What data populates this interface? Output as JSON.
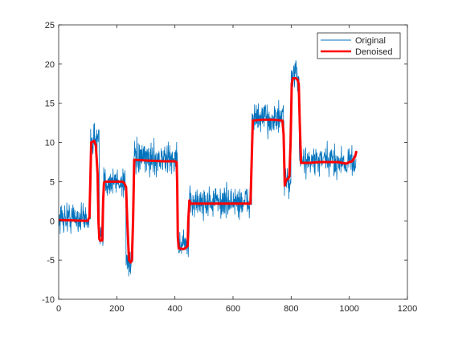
{
  "chart_data": {
    "type": "line",
    "title": "",
    "xlabel": "",
    "ylabel": "",
    "xlim": [
      0,
      1200
    ],
    "ylim": [
      -10,
      25
    ],
    "xticks": [
      0,
      200,
      400,
      600,
      800,
      1000,
      1200
    ],
    "yticks": [
      -10,
      -5,
      0,
      5,
      10,
      15,
      20,
      25
    ],
    "xtick_labels": [
      "0",
      "200",
      "400",
      "600",
      "800",
      "1000",
      "1200"
    ],
    "ytick_labels": [
      "-10",
      "-5",
      "0",
      "5",
      "10",
      "15",
      "20",
      "25"
    ],
    "grid": false,
    "legend": {
      "position": "top-right"
    },
    "series": [
      {
        "name": "Original",
        "color": "#0072BD",
        "style": "thin-noisy",
        "segments": [
          {
            "x": [
              1,
              110
            ],
            "level": 0.4,
            "noise": 2.0
          },
          {
            "x": [
              110,
              140
            ],
            "level": 10.5,
            "noise": 2.0
          },
          {
            "x": [
              140,
              155
            ],
            "level": -2.3,
            "noise": 2.0
          },
          {
            "x": [
              155,
              232
            ],
            "level": 5.0,
            "noise": 2.0
          },
          {
            "x": [
              232,
              257
            ],
            "level": -5.0,
            "noise": 2.0
          },
          {
            "x": [
              257,
              410
            ],
            "level": 7.9,
            "noise": 2.0
          },
          {
            "x": [
              410,
              450
            ],
            "level": -3.0,
            "noise": 2.0
          },
          {
            "x": [
              450,
              665
            ],
            "level": 2.4,
            "noise": 2.0
          },
          {
            "x": [
              665,
              776
            ],
            "level": 13.0,
            "noise": 2.0
          },
          {
            "x": [
              776,
              800
            ],
            "level": 5.0,
            "noise": 2.0
          },
          {
            "x": [
              800,
              828
            ],
            "level": 18.5,
            "noise": 2.0
          },
          {
            "x": [
              828,
              1024
            ],
            "level": 7.6,
            "noise": 2.0
          }
        ]
      },
      {
        "name": "Denoised",
        "color": "#FF0000",
        "style": "thick",
        "x": [
          1,
          100,
          106,
          109,
          112,
          122,
          128,
          134,
          137,
          140,
          143,
          150,
          153,
          156,
          160,
          220,
          226,
          232,
          236,
          242,
          248,
          252,
          256,
          260,
          300,
          360,
          400,
          406,
          408,
          410,
          413,
          430,
          438,
          444,
          446,
          450,
          454,
          500,
          560,
          600,
          650,
          660,
          664,
          668,
          700,
          740,
          770,
          774,
          778,
          782,
          790,
          794,
          798,
          802,
          806,
          816,
          822,
          826,
          830,
          834,
          860,
          900,
          960,
          990,
          1000,
          1010,
          1020,
          1024
        ],
        "values": [
          0.1,
          0.0,
          0.5,
          5.0,
          10.0,
          10.2,
          9.6,
          6.0,
          0.0,
          -2.3,
          -2.5,
          -2.5,
          2.5,
          4.9,
          5.0,
          5.0,
          4.8,
          4.3,
          0.0,
          -5.0,
          -5.3,
          -5.0,
          0.0,
          7.8,
          7.7,
          7.6,
          7.6,
          7.5,
          4.5,
          -2.0,
          -3.5,
          -3.6,
          -3.4,
          -3.2,
          0.0,
          2.6,
          2.2,
          2.2,
          2.2,
          2.2,
          2.2,
          2.2,
          7.5,
          12.8,
          12.9,
          12.9,
          12.8,
          11.0,
          4.5,
          5.2,
          5.4,
          5.7,
          10.0,
          17.5,
          18.2,
          18.2,
          18.0,
          17.5,
          12.0,
          7.4,
          7.4,
          7.5,
          7.5,
          7.3,
          7.5,
          7.6,
          8.2,
          8.8
        ]
      }
    ]
  }
}
